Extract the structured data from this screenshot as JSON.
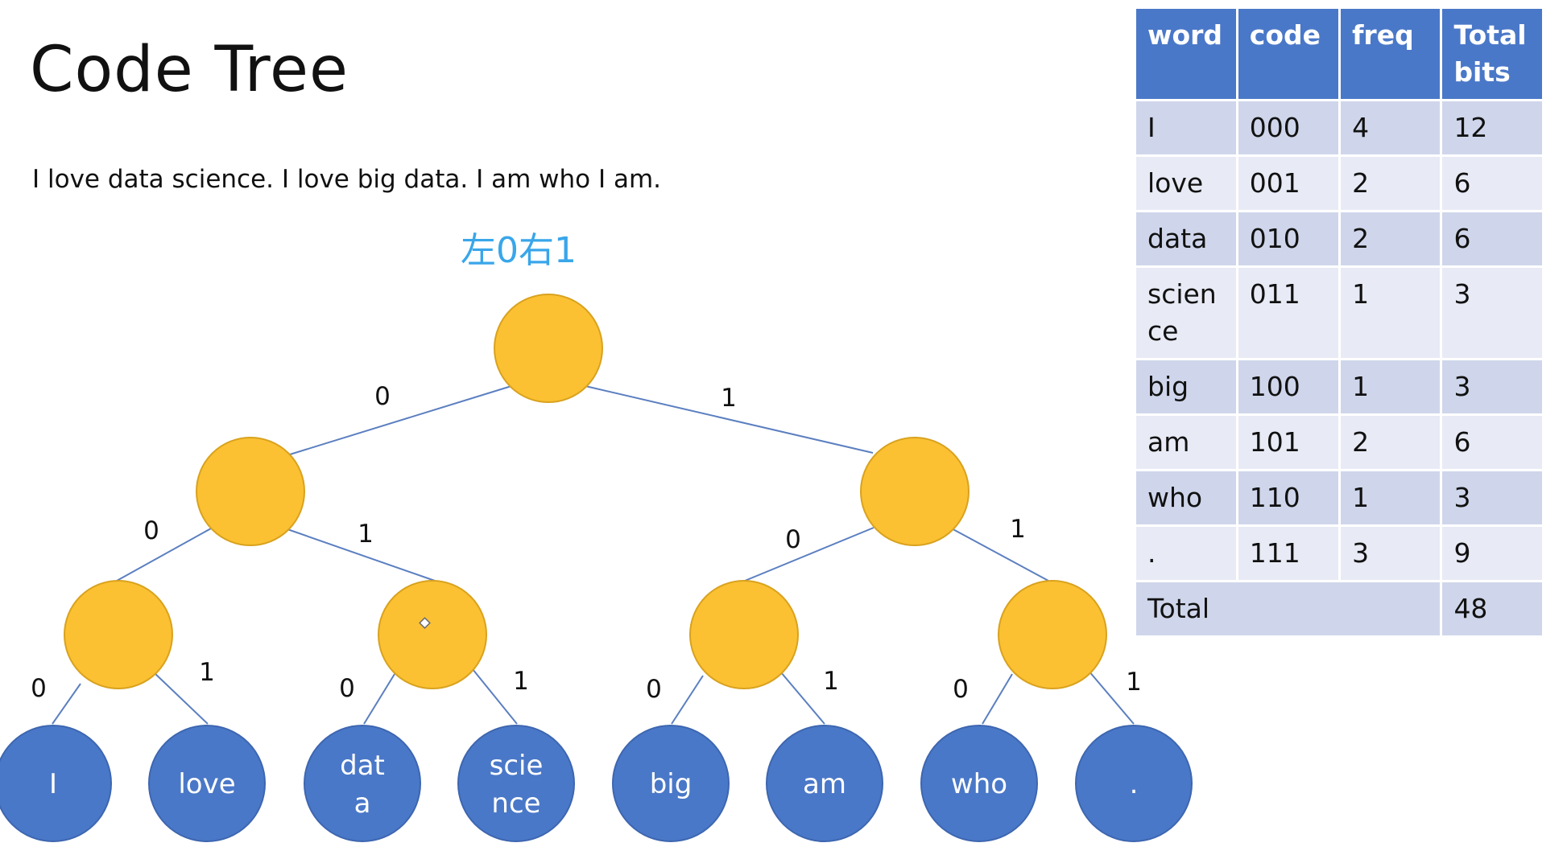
{
  "slide": {
    "title": "Code Tree",
    "sentence": "I love data science. I love big data. I am who I am.",
    "hint": "左0右1"
  },
  "table": {
    "headers": [
      "word",
      "code",
      "freq",
      "Total bits"
    ],
    "rows": [
      {
        "word": "I",
        "code": "000",
        "freq": "4",
        "total": "12"
      },
      {
        "word": "love",
        "code": "001",
        "freq": "2",
        "total": "6"
      },
      {
        "word": "data",
        "code": "010",
        "freq": "2",
        "total": "6"
      },
      {
        "word": "scien ce",
        "code": "011",
        "freq": "1",
        "total": "3"
      },
      {
        "word": "big",
        "code": "100",
        "freq": "1",
        "total": "3"
      },
      {
        "word": "am",
        "code": "101",
        "freq": "2",
        "total": "6"
      },
      {
        "word": "who",
        "code": "110",
        "freq": "1",
        "total": "3"
      },
      {
        "word": ".",
        "code": "111",
        "freq": "3",
        "total": "9"
      }
    ],
    "total_label": "Total",
    "total_value": "48"
  },
  "tree": {
    "colors": {
      "internal_fill": "#fbc133",
      "internal_stroke": "#d9a21e",
      "leaf_fill": "#4a78c8",
      "leaf_stroke": "#3d66b0",
      "edge": "#5b7fc0",
      "leaf_text": "#ffffff"
    },
    "edge_labels": {
      "root_left": "0",
      "root_right": "1",
      "l_left": "0",
      "l_right": "1",
      "r_left": "0",
      "r_right": "1",
      "ll_left": "0",
      "ll_right": "1",
      "lr_left": "0",
      "lr_right": "1",
      "rl_left": "0",
      "rl_right": "1",
      "rr_left": "0",
      "rr_right": "1"
    },
    "leaves": {
      "l1": "I",
      "l2": "love",
      "l3a": "dat",
      "l3b": "a",
      "l4a": "scie",
      "l4b": "nce",
      "l5": "big",
      "l6": "am",
      "l7": "who",
      "l8": "."
    }
  }
}
